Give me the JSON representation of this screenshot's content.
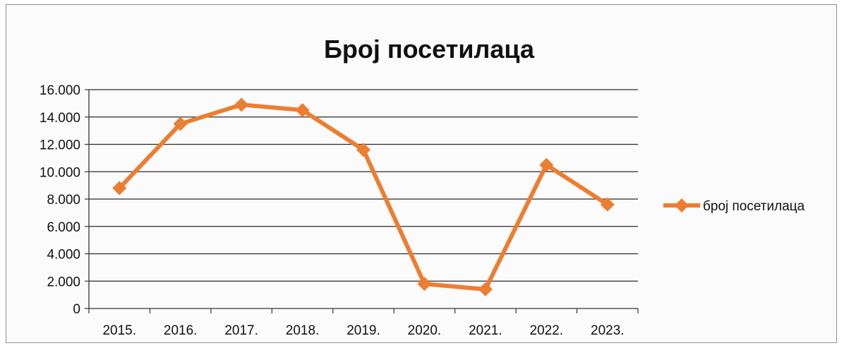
{
  "chart_data": {
    "type": "line",
    "title": "Број посетилаца",
    "categories": [
      "2015.",
      "2016.",
      "2017.",
      "2018.",
      "2019.",
      "2020.",
      "2021.",
      "2022.",
      "2023."
    ],
    "y_ticks": [
      "0",
      "2.000",
      "4.000",
      "6.000",
      "8.000",
      "10.000",
      "12.000",
      "14.000",
      "16.000"
    ],
    "ylim": [
      0,
      16000
    ],
    "grid": true,
    "legend_position": "right",
    "series": [
      {
        "name": "број посетилаца",
        "color": "#ED7D31",
        "marker": "diamond",
        "values": [
          8800,
          13500,
          14900,
          14500,
          11600,
          1800,
          1400,
          10500,
          7600
        ]
      }
    ]
  }
}
